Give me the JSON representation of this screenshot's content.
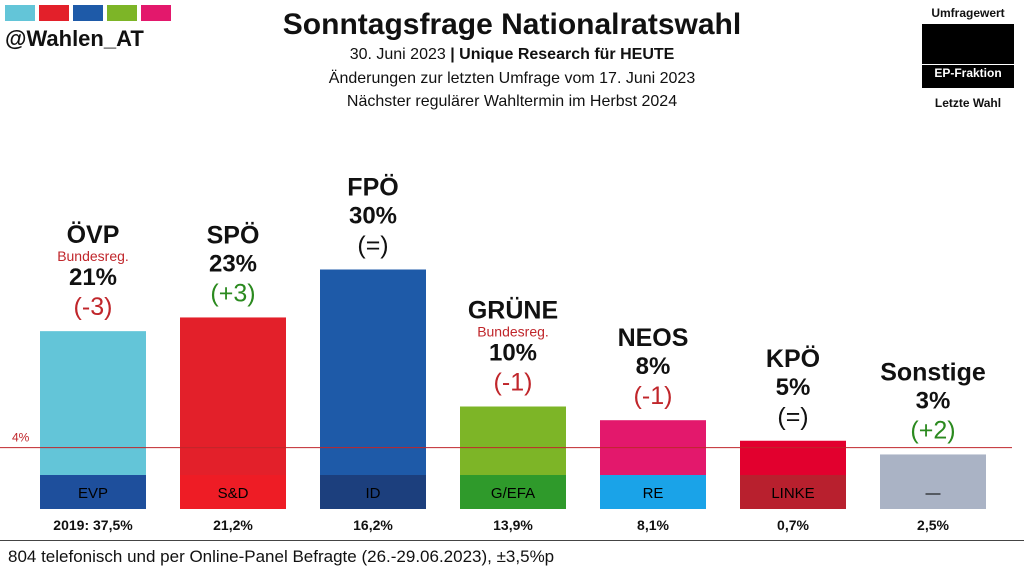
{
  "header": {
    "handle": "@Wahlen_AT",
    "title": "Sonntagsfrage Nationalratswahl",
    "date": "30. Juni 2023",
    "separator": "|",
    "institute": "Unique Research für HEUTE",
    "change_note": "Änderungen zur letzten Umfrage vom 17. Juni 2023",
    "next_election": "Nächster regulärer Wahltermin im Herbst 2024",
    "logo_colors": [
      "#63c5d8",
      "#e3202a",
      "#1e5aa8",
      "#7db527",
      "#e3186c"
    ]
  },
  "legend": {
    "top": "Umfragewert",
    "middle": "EP-Fraktion",
    "bottom": "Letzte Wahl"
  },
  "chart_data": {
    "type": "bar",
    "title": "Sonntagsfrage Nationalratswahl",
    "threshold": {
      "value": 4,
      "label": "4%",
      "color": "#c0262b"
    },
    "ylim": [
      0,
      30
    ],
    "parties": [
      {
        "name": "ÖVP",
        "note": "Bundesreg.",
        "value": 21,
        "value_label": "21%",
        "change": "(-3)",
        "change_color": "#c0262b",
        "color": "#63c5d8",
        "ep_group": "EVP",
        "ep_color": "#1e4f9c",
        "ep_text_color": "#000000",
        "last": "2019: 37,5%"
      },
      {
        "name": "SPÖ",
        "note": "",
        "value": 23,
        "value_label": "23%",
        "change": "(+3)",
        "change_color": "#2b8a1f",
        "color": "#e3202a",
        "ep_group": "S&D",
        "ep_color": "#ee1c25",
        "ep_text_color": "#000000",
        "last": "21,2%"
      },
      {
        "name": "FPÖ",
        "note": "",
        "value": 30,
        "value_label": "30%",
        "change": "(=)",
        "change_color": "#111111",
        "color": "#1e5aa8",
        "ep_group": "ID",
        "ep_color": "#1c3f7d",
        "ep_text_color": "#000000",
        "last": "16,2%"
      },
      {
        "name": "GRÜNE",
        "note": "Bundesreg.",
        "value": 10,
        "value_label": "10%",
        "change": "(-1)",
        "change_color": "#c0262b",
        "color": "#7db527",
        "ep_group": "G/EFA",
        "ep_color": "#2f9a2b",
        "ep_text_color": "#000000",
        "last": "13,9%"
      },
      {
        "name": "NEOS",
        "note": "",
        "value": 8,
        "value_label": "8%",
        "change": "(-1)",
        "change_color": "#c0262b",
        "color": "#e3186c",
        "ep_group": "RE",
        "ep_color": "#1aa3e8",
        "ep_text_color": "#000000",
        "last": "8,1%"
      },
      {
        "name": "KPÖ",
        "note": "",
        "value": 5,
        "value_label": "5%",
        "change": "(=)",
        "change_color": "#111111",
        "color": "#e2002e",
        "ep_group": "LINKE",
        "ep_color": "#b8202e",
        "ep_text_color": "#000000",
        "last": "0,7%"
      },
      {
        "name": "Sonstige",
        "note": "",
        "value": 3,
        "value_label": "3%",
        "change": "(+2)",
        "change_color": "#2b8a1f",
        "color": "#aab3c5",
        "ep_group": "—",
        "ep_color": "#aab3c5",
        "ep_text_color": "#000000",
        "last": "2,5%"
      }
    ]
  },
  "footer": {
    "text": "804 telefonisch und per Online-Panel Befragte (26.-29.06.2023), ±3,5%p"
  }
}
